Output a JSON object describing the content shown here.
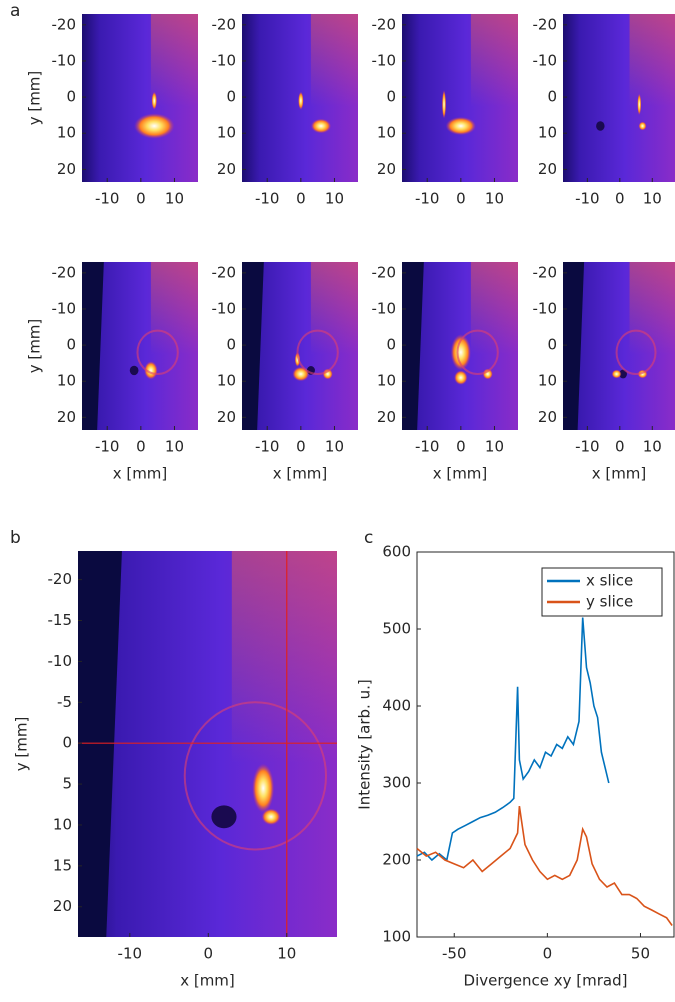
{
  "chart_data": [
    {
      "type": "image",
      "panel_label": "a",
      "xlim": [
        -17.5,
        17
      ],
      "ylim": [
        23.5,
        -23
      ],
      "xticks": [
        -10,
        0,
        10
      ],
      "yticks": [
        -20,
        -10,
        0,
        10,
        20
      ],
      "xlabel": "x [mm]",
      "ylabel": "y [mm]"
    },
    {
      "type": "image",
      "panel_label": "b",
      "xlim": [
        -16.6,
        16.4
      ],
      "ylim": [
        23.7,
        -23.5
      ],
      "xticks": [
        -10,
        0,
        10
      ],
      "yticks": [
        -20,
        -15,
        -10,
        -5,
        0,
        5,
        10,
        15,
        20
      ],
      "xlabel": "x [mm]",
      "ylabel": "y [mm]",
      "crosshair": {
        "x": 10,
        "y": 0,
        "color": "#e02020"
      }
    },
    {
      "type": "line",
      "panel_label": "c",
      "xlim": [
        -70,
        68
      ],
      "ylim": [
        100,
        600
      ],
      "xticks": [
        -50,
        0,
        50
      ],
      "yticks": [
        100,
        200,
        300,
        400,
        500,
        600
      ],
      "xlabel": "Divergence xy [mrad]",
      "ylabel": "Intensity [arb. u.]",
      "legend": "top-right",
      "series": [
        {
          "name": "x slice",
          "color": "#0072bd",
          "x": [
            -70,
            -66,
            -62,
            -58,
            -54,
            -51,
            -48,
            -44,
            -40,
            -36,
            -32,
            -28,
            -24,
            -20,
            -18,
            -16,
            -15,
            -13,
            -10,
            -7,
            -4,
            -1,
            2,
            5,
            8,
            11,
            14,
            17,
            19,
            21,
            23,
            25,
            27,
            29,
            31,
            33
          ],
          "values": [
            205,
            210,
            200,
            208,
            200,
            235,
            240,
            245,
            250,
            255,
            258,
            262,
            268,
            275,
            280,
            425,
            330,
            305,
            315,
            330,
            320,
            340,
            335,
            350,
            345,
            360,
            350,
            380,
            515,
            450,
            430,
            400,
            385,
            340,
            320,
            300
          ]
        },
        {
          "name": "y slice",
          "color": "#d95319",
          "x": [
            -70,
            -65,
            -60,
            -55,
            -50,
            -45,
            -40,
            -35,
            -30,
            -25,
            -20,
            -16,
            -15,
            -12,
            -8,
            -4,
            0,
            4,
            8,
            12,
            16,
            19,
            21,
            24,
            28,
            32,
            36,
            40,
            44,
            48,
            52,
            56,
            60,
            64,
            67
          ],
          "values": [
            215,
            205,
            210,
            200,
            195,
            190,
            200,
            185,
            195,
            205,
            215,
            235,
            270,
            220,
            200,
            185,
            175,
            180,
            175,
            180,
            200,
            240,
            230,
            195,
            175,
            165,
            170,
            155,
            155,
            150,
            140,
            135,
            130,
            125,
            115
          ]
        }
      ]
    }
  ]
}
